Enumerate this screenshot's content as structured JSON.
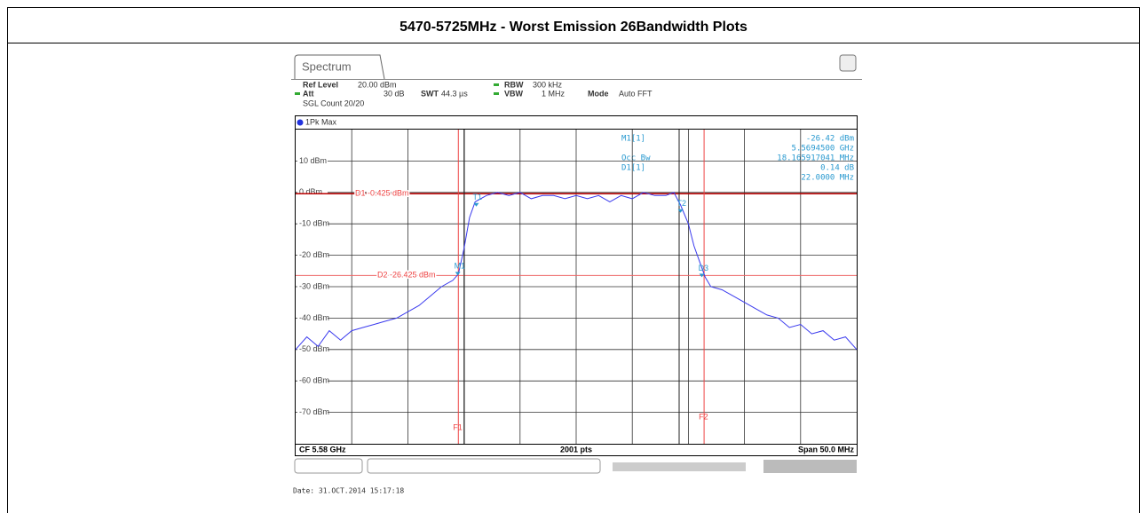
{
  "header": {
    "title": "5470-5725MHz - Worst Emission 26Bandwidth Plots"
  },
  "analyzer": {
    "tab": "Spectrum",
    "ref_level_label": "Ref Level",
    "ref_level": "20.00 dBm",
    "att_label": "Att",
    "att": "30 dB",
    "swt_label": "SWT",
    "swt": "44.3 µs",
    "rbw_label": "RBW",
    "rbw": "300 kHz",
    "vbw_label": "VBW",
    "vbw": "1 MHz",
    "mode_label": "Mode",
    "mode": "Auto FFT",
    "sgl_count": "SGL Count 20/20",
    "trace_label": "1Pk Max",
    "readout": [
      [
        "M1[1]",
        "-26.42 dBm"
      ],
      [
        "",
        "5.5694500 GHz"
      ],
      [
        "Occ Bw",
        "18.165917041 MHz"
      ],
      [
        "D1[1]",
        "0.14 dB"
      ],
      [
        "",
        "22.0000 MHz"
      ]
    ],
    "cf": "CF 5.58 GHz",
    "points": "2001 pts",
    "span": "Span 50.0 MHz",
    "date": "Date: 31.OCT.2014  15:17:18"
  },
  "chart_data": {
    "type": "line",
    "x": [
      5555,
      5556,
      5557,
      5558,
      5559,
      5560,
      5561,
      5562,
      5563,
      5564,
      5565,
      5566,
      5567,
      5568,
      5569,
      5569.5,
      5570,
      5570.5,
      5571,
      5572,
      5573,
      5574,
      5575,
      5576,
      5577,
      5578,
      5579,
      5580,
      5581,
      5582,
      5583,
      5584,
      5585,
      5586,
      5587,
      5588,
      5588.7,
      5589.3,
      5590,
      5590.5,
      5591,
      5591.5,
      5592,
      5593,
      5594,
      5595,
      5596,
      5597,
      5598,
      5599,
      5600,
      5601,
      5602,
      5603,
      5604,
      5605
    ],
    "values": [
      -50,
      -46,
      -49,
      -44,
      -47,
      -44,
      -43,
      -42,
      -41,
      -40,
      -38,
      -36,
      -33,
      -30,
      -28,
      -26,
      -18,
      -8,
      -3,
      -1,
      0,
      -1,
      0,
      -2,
      -1,
      -1,
      -2,
      -1,
      -2,
      -1,
      -3,
      -1,
      -2,
      0,
      -1,
      -1,
      0,
      -4,
      -10,
      -17,
      -22,
      -27,
      -30,
      -31,
      -33,
      -35,
      -37,
      -39,
      -40,
      -43,
      -42,
      -45,
      -44,
      -47,
      -46,
      -50
    ],
    "color": "#3a3aee",
    "xlim": [
      5555,
      5605
    ],
    "ylim": [
      -80,
      20
    ],
    "yticks": [
      {
        "value": 10,
        "label": "10 dBm"
      },
      {
        "value": 0,
        "label": "0 dBm"
      },
      {
        "value": -10,
        "label": "-10 dBm"
      },
      {
        "value": -20,
        "label": "-20 dBm"
      },
      {
        "value": -30,
        "label": "-30 dBm"
      },
      {
        "value": -40,
        "label": "-40 dBm"
      },
      {
        "value": -50,
        "label": "-50 dBm"
      },
      {
        "value": -60,
        "label": "-60 dBm"
      },
      {
        "value": -70,
        "label": "-70 dBm"
      }
    ],
    "grid": true,
    "display_lines": [
      {
        "label": "D1 -0.425 dBm",
        "value": -0.425
      },
      {
        "label": "D2 -26.425 dBm",
        "value": -26.425
      }
    ],
    "freq_lines": [
      {
        "label": "F1",
        "value": 5569.5
      },
      {
        "label": "F2",
        "value": 5591.4
      }
    ],
    "markers": [
      {
        "label": "M1",
        "x": 5569.45,
        "value": -26.42
      },
      {
        "label": "T1",
        "x": 5571.1,
        "value": -4.5
      },
      {
        "label": "T2",
        "x": 5589.3,
        "value": -6.5
      },
      {
        "label": "D3",
        "x": 5591.2,
        "value": -27
      }
    ]
  }
}
